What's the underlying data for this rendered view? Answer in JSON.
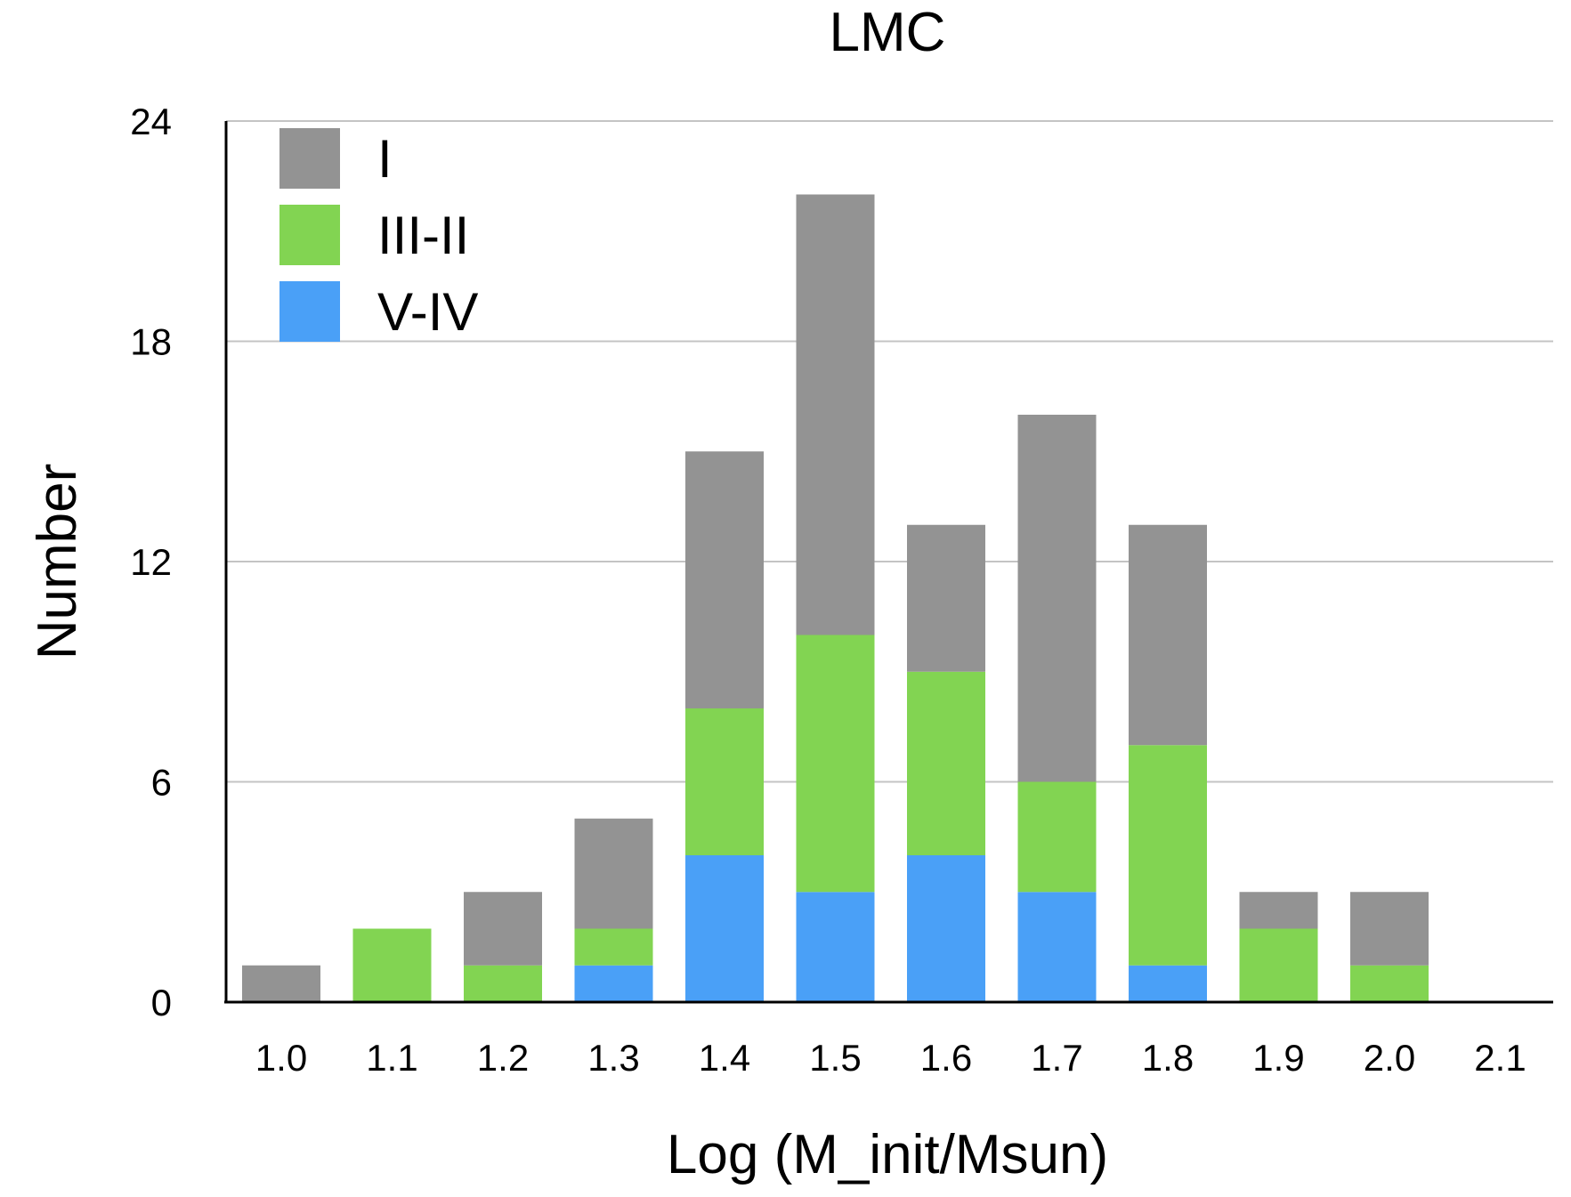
{
  "chart_data": {
    "type": "bar",
    "stacked": true,
    "title": "LMC",
    "xlabel": "Log (M_init/Msun)",
    "ylabel": "Number",
    "categories": [
      "1.0",
      "1.1",
      "1.2",
      "1.3",
      "1.4",
      "1.5",
      "1.6",
      "1.7",
      "1.8",
      "1.9",
      "2.0",
      "2.1"
    ],
    "ylim": [
      0,
      24
    ],
    "yticks": [
      0,
      6,
      12,
      18,
      24
    ],
    "grid": true,
    "legend_position": "top-left",
    "series": [
      {
        "name": "V-IV",
        "color": "#4aa0f7",
        "values": [
          0,
          0,
          0,
          1,
          4,
          3,
          4,
          3,
          1,
          0,
          0,
          0
        ]
      },
      {
        "name": "III-II",
        "color": "#82d452",
        "values": [
          0,
          2,
          1,
          1,
          4,
          7,
          5,
          3,
          6,
          2,
          1,
          0
        ]
      },
      {
        "name": "I",
        "color": "#939393",
        "values": [
          1,
          0,
          2,
          3,
          7,
          12,
          4,
          10,
          6,
          1,
          2,
          0
        ]
      }
    ],
    "legend_order": [
      "I",
      "III-II",
      "V-IV"
    ]
  }
}
